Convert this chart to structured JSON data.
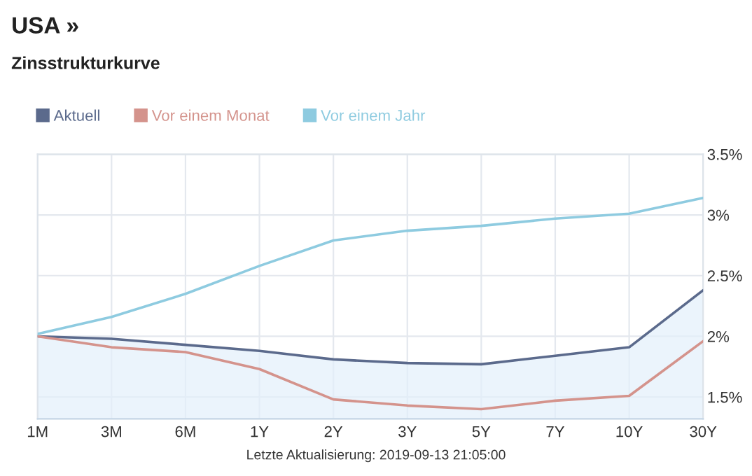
{
  "chart_data": {
    "type": "line",
    "title": "USA »",
    "subtitle": "Zinsstrukturkurve",
    "categories": [
      "1M",
      "3M",
      "6M",
      "1Y",
      "2Y",
      "3Y",
      "5Y",
      "7Y",
      "10Y",
      "30Y"
    ],
    "series": [
      {
        "name": "Aktuell",
        "type": "area",
        "color": "#5b6a8c",
        "values": [
          2.0,
          1.98,
          1.93,
          1.88,
          1.81,
          1.78,
          1.77,
          1.84,
          1.91,
          2.38
        ]
      },
      {
        "name": "Vor einem Monat",
        "color": "#d4938c",
        "values": [
          2.0,
          1.91,
          1.87,
          1.73,
          1.48,
          1.43,
          1.4,
          1.47,
          1.51,
          1.96
        ]
      },
      {
        "name": "Vor einem Jahr",
        "color": "#8ecbe0",
        "values": [
          2.02,
          2.16,
          2.35,
          2.58,
          2.79,
          2.87,
          2.91,
          2.97,
          3.01,
          3.14
        ]
      }
    ],
    "ylim": [
      1.32,
      3.5
    ],
    "yticks": [
      {
        "value": 1.5,
        "label": "1.5%"
      },
      {
        "value": 2,
        "label": "2%"
      },
      {
        "value": 2.5,
        "label": "2.5%"
      },
      {
        "value": 3,
        "label": "3%"
      },
      {
        "value": 3.5,
        "label": "3.5%"
      }
    ],
    "grid": true,
    "legend": "top left",
    "marker": "none",
    "line_style": "solid",
    "annotations": [
      "Letzte Aktualisierung: 2019-09-13 21:05:00"
    ]
  }
}
